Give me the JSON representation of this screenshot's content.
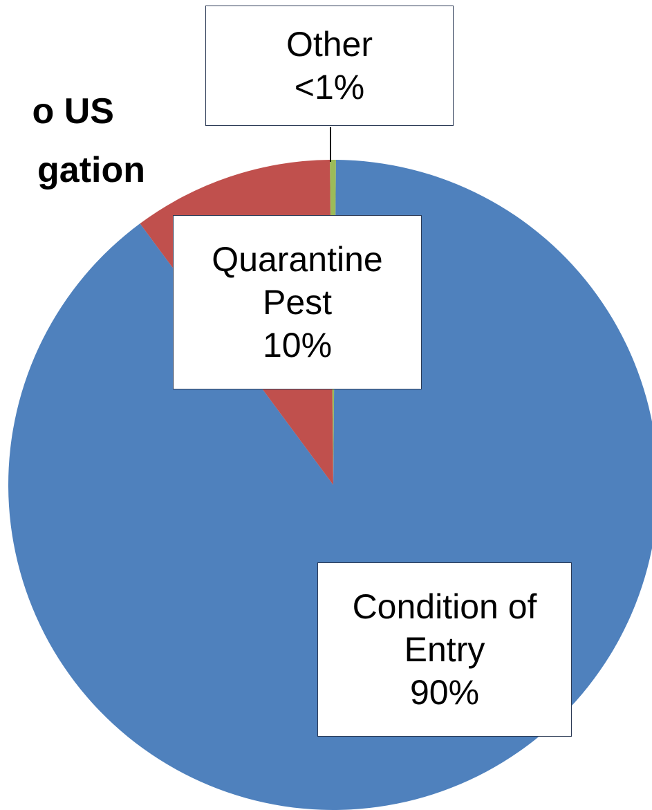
{
  "chart_data": {
    "type": "pie",
    "title": [
      "o US",
      "gation"
    ],
    "categories": [
      "Other",
      "Condition of Entry",
      "Quarantine Pest"
    ],
    "values": [
      0.3,
      90,
      10
    ],
    "value_labels": [
      "<1%",
      "90%",
      "10%"
    ],
    "colors": [
      "#9bbb59",
      "#4f81bd",
      "#c0504d"
    ]
  }
}
